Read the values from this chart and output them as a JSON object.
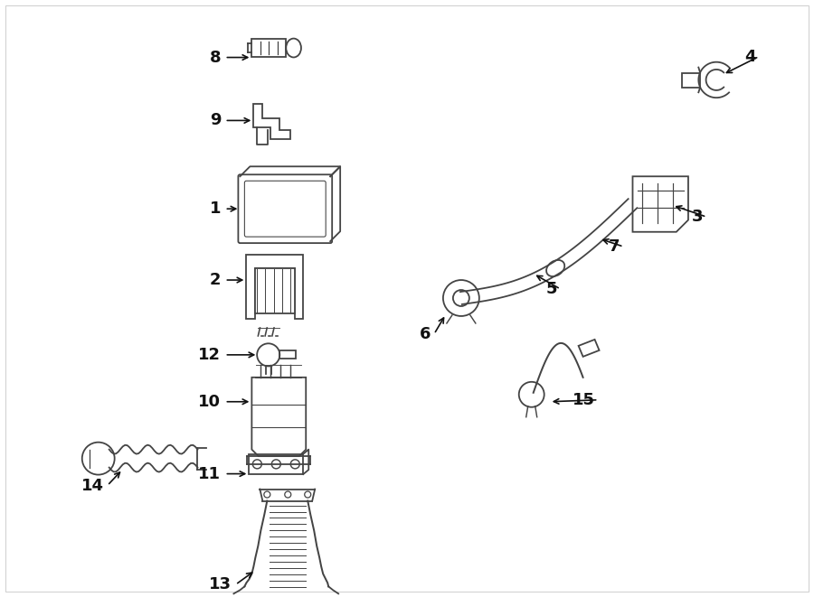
{
  "bg_color": "#ffffff",
  "text_color": "#222222",
  "fig_width": 9.0,
  "fig_height": 6.61,
  "dpi": 100
}
